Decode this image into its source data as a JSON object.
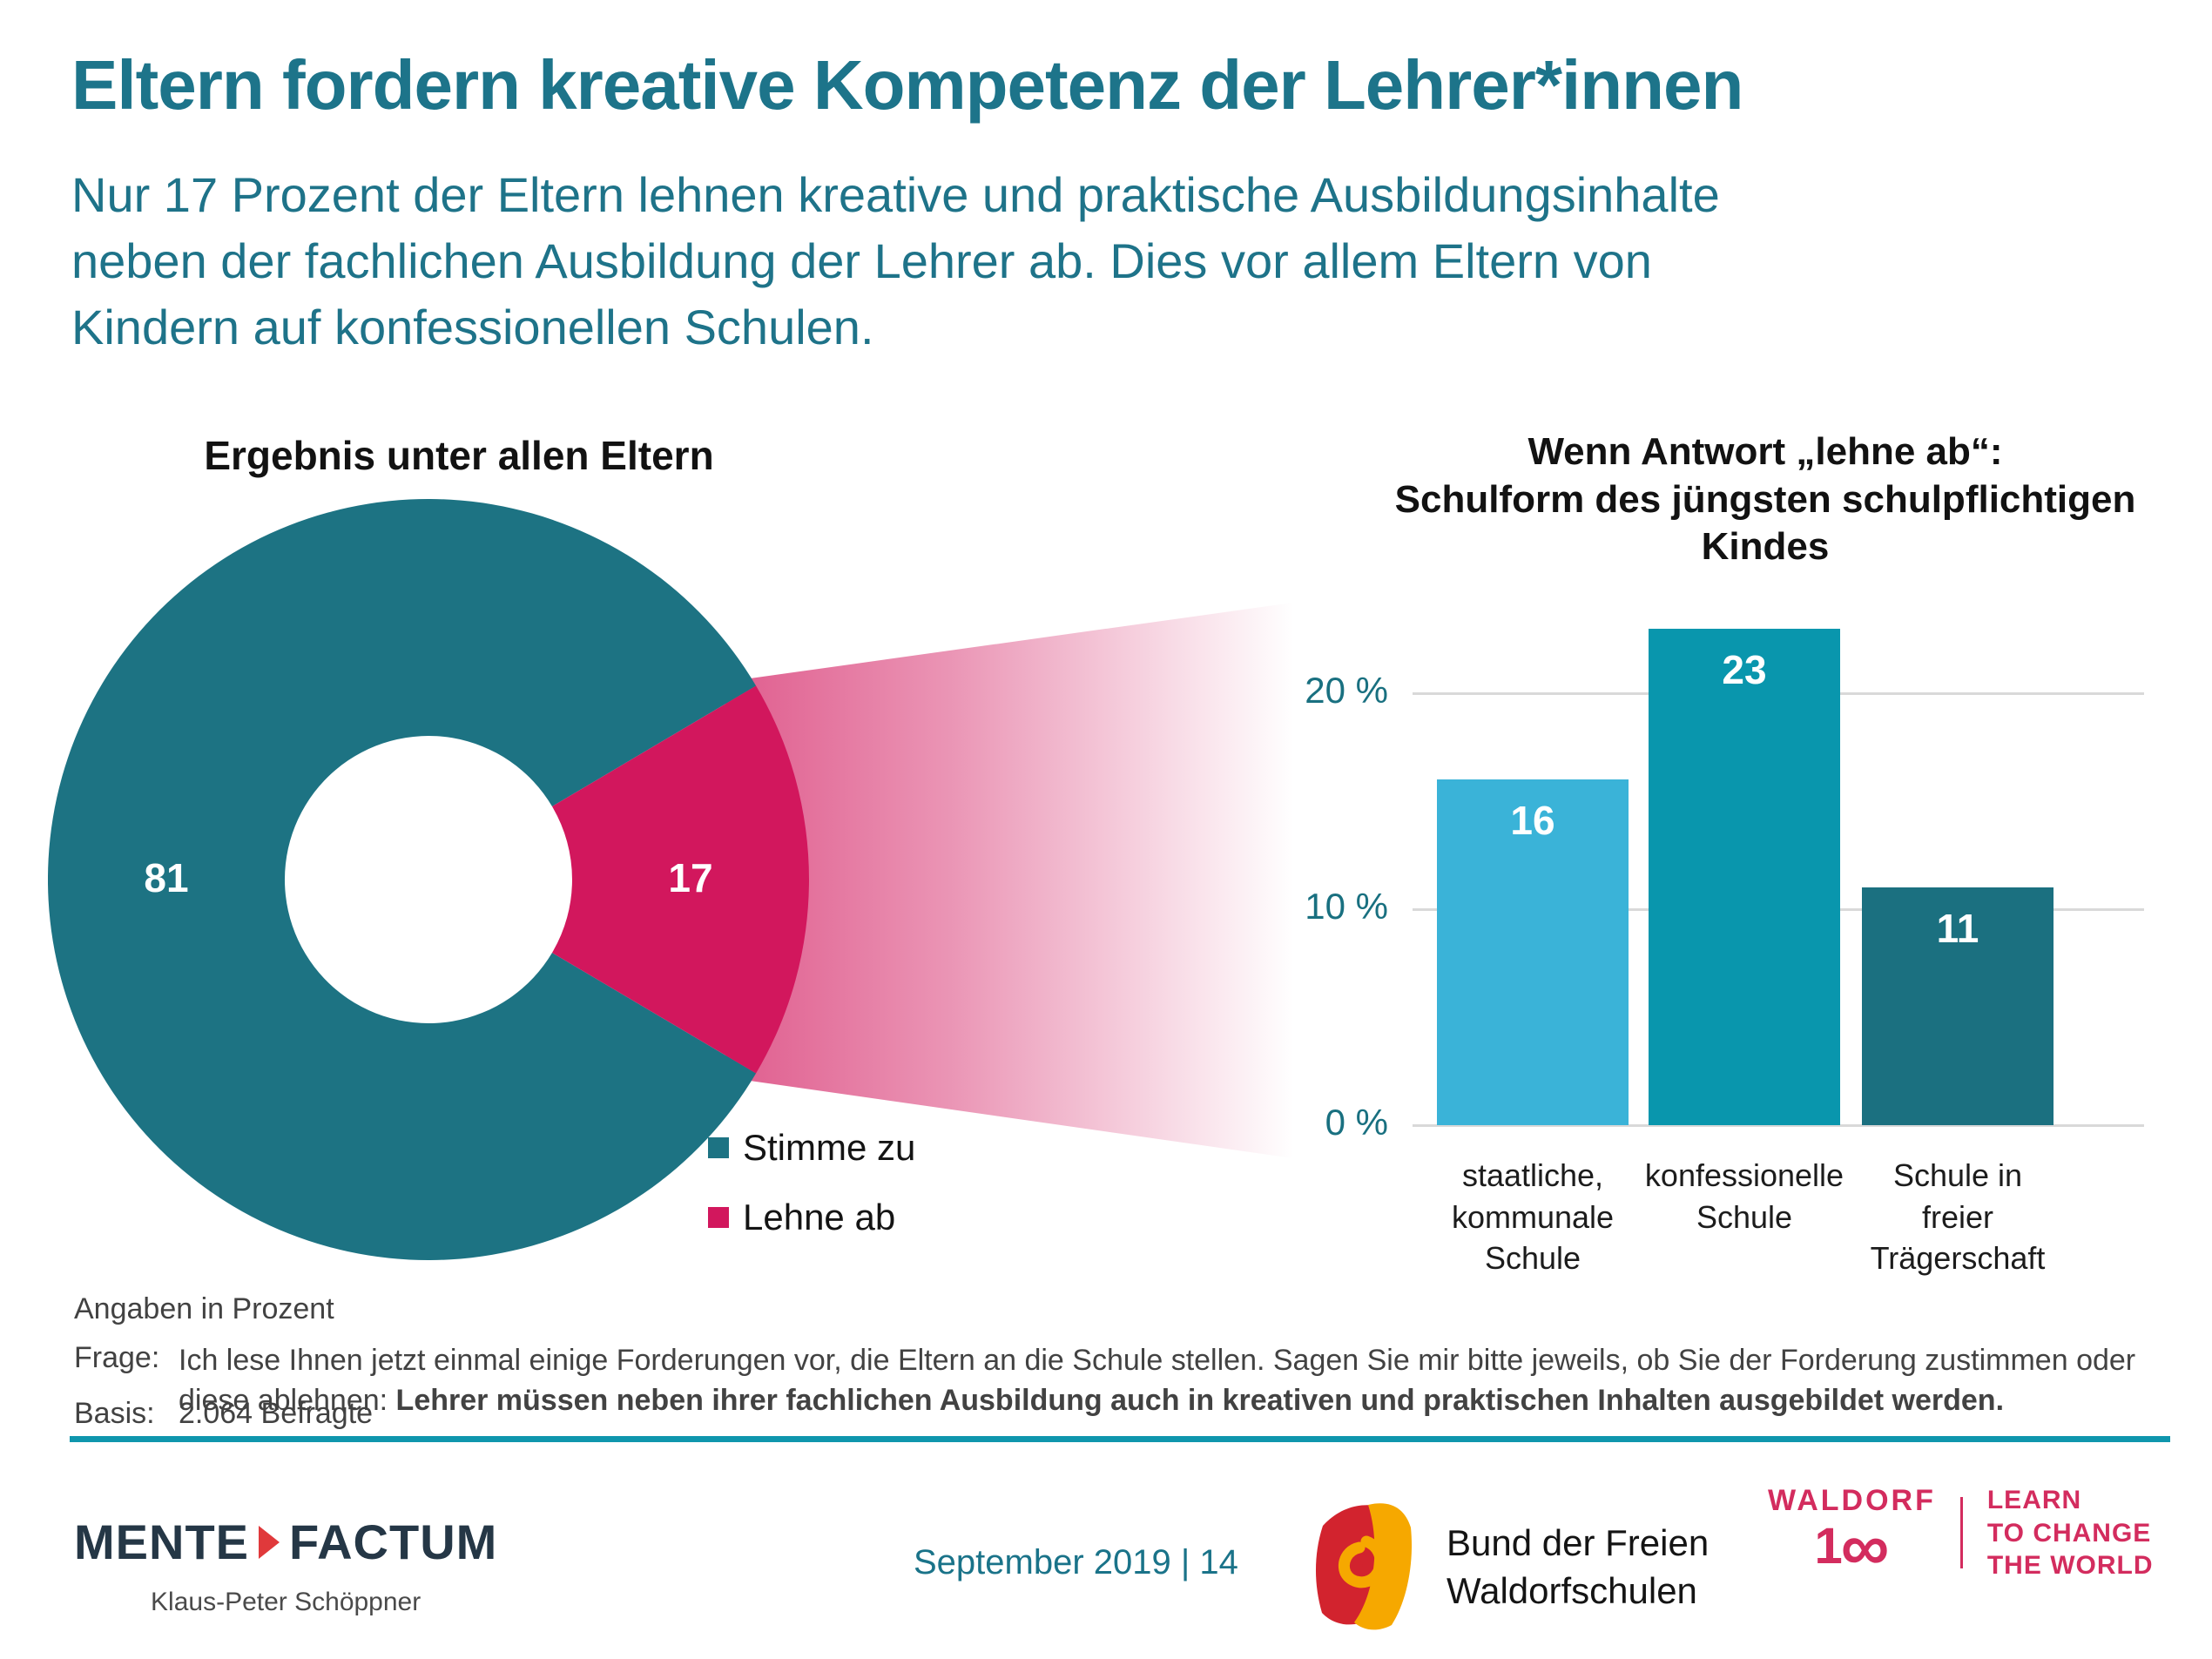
{
  "header": {
    "title": "Eltern fordern kreative Kompetenz der Lehrer*innen",
    "subtitle": "Nur 17 Prozent der Eltern lehnen kreative und praktische Ausbildungsinhalte\nneben der fachlichen Ausbildung der Lehrer ab. Dies vor allem Eltern von\nKindern auf konfessionellen Schulen."
  },
  "chart_data": [
    {
      "type": "pie",
      "donut": true,
      "title": "Ergebnis unter allen Eltern",
      "unit": "percent",
      "slices": [
        {
          "label": "Stimme zu",
          "value": 81,
          "color": "#1d7383"
        },
        {
          "label": "Lehne ab",
          "value": 17,
          "color": "#d2175d"
        }
      ],
      "data_labels_shown": [
        "81",
        "17"
      ],
      "legend_position": "bottom-right",
      "highlight_beam": "Lehne-ab slice fans out toward bar chart, fading pink to white"
    },
    {
      "type": "bar",
      "title": "Wenn Antwort „lehne ab“: Schulform des jüngsten schulpflichtigen Kindes",
      "title_lines": [
        "Wenn Antwort „lehne ab“:",
        "Schulform des jüngsten schulpflichtigen",
        "Kindes"
      ],
      "categories": [
        "staatliche, kommunale Schule",
        "konfessionelle Schule",
        "Schule in freier Trägerschaft"
      ],
      "category_lines": [
        [
          "staatliche,",
          "kommunale",
          "Schule"
        ],
        [
          "konfessionelle",
          "Schule"
        ],
        [
          "Schule in",
          "freier",
          "Trägerschaft"
        ]
      ],
      "values": [
        16,
        23,
        11
      ],
      "bar_colors": [
        "#3ab3d8",
        "#0996ad",
        "#1b7080"
      ],
      "ylim": [
        0,
        25
      ],
      "yticks": [
        {
          "label": "20 %",
          "value": 20
        },
        {
          "label": "10 %",
          "value": 10
        },
        {
          "label": "0 %",
          "value": 0
        }
      ],
      "grid": true,
      "xlabel": "",
      "ylabel": ""
    }
  ],
  "footnotes": {
    "unit_note": "Angaben in Prozent",
    "frage_label": "Frage:",
    "frage_text": "Ich lese Ihnen jetzt einmal einige Forderungen vor, die Eltern an die Schule stellen. Sagen Sie mir bitte jeweils, ob Sie der Forderung zustimmen oder diese ablehnen: ",
    "frage_text_bold": "Lehrer müssen neben ihrer fachlichen Ausbildung auch in kreativen und praktischen Inhalten ausgebildet werden.",
    "basis_label": "Basis:",
    "basis_value": "2.064 Befragte"
  },
  "footer": {
    "mente": {
      "word1": "MENTE",
      "word2": "FACTUM",
      "author": "Klaus-Peter Schöppner"
    },
    "date_page": "September 2019 | 14",
    "bund": {
      "line1": "Bund der Freien",
      "line2": "Waldorfschulen"
    },
    "waldorf": {
      "brand": "WALDORF",
      "number_one": "1",
      "number_infinity": "∞",
      "number_value": "100",
      "tagline_lines": [
        "LEARN",
        "TO CHANGE",
        "THE WORLD"
      ]
    }
  },
  "colors": {
    "heading_teal": "#1d748a",
    "donut_teal": "#1d7383",
    "donut_pink": "#d2175d",
    "bar_light_blue": "#3ab3d8",
    "bar_teal": "#0996ad",
    "bar_dark_teal": "#1b7080",
    "axis_teal": "#197080",
    "gridline_gray": "#d9d9d9",
    "rule_teal": "#0f96ad",
    "mente_navy": "#253746",
    "mente_red": "#e0393b",
    "bund_red": "#d2232e",
    "bund_gold": "#f6a800",
    "waldorf_pink": "#d32c5e"
  }
}
